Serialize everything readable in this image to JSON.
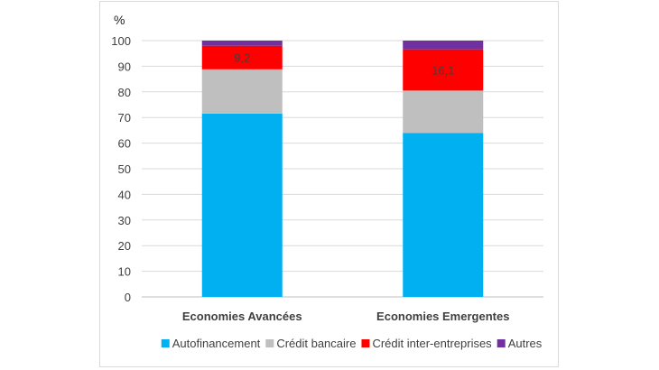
{
  "chart_data": {
    "type": "bar",
    "stacked": true,
    "unit": "%",
    "categories": [
      "Economies Avancées",
      "Economies Emergentes"
    ],
    "series": [
      {
        "name": "Autofinancement",
        "color": "#00b0f0",
        "values": [
          71.5,
          64.0
        ]
      },
      {
        "name": "Crédit bancaire",
        "color": "#bfbfbf",
        "values": [
          17.3,
          16.5
        ]
      },
      {
        "name": "Crédit inter-entreprises",
        "color": "#ff0000",
        "values": [
          9.2,
          16.1
        ]
      },
      {
        "name": "Autres",
        "color": "#7030a0",
        "values": [
          2.0,
          3.4
        ]
      }
    ],
    "data_labels": [
      {
        "series": "Crédit inter-entreprises",
        "category": "Economies Avancées",
        "text": "9,2"
      },
      {
        "series": "Crédit inter-entreprises",
        "category": "Economies Emergentes",
        "text": "16,1"
      }
    ],
    "y_ticks": [
      0,
      10,
      20,
      30,
      40,
      50,
      60,
      70,
      80,
      90,
      100
    ],
    "ylim": [
      0,
      100
    ],
    "grid": true,
    "legend_position": "bottom"
  }
}
